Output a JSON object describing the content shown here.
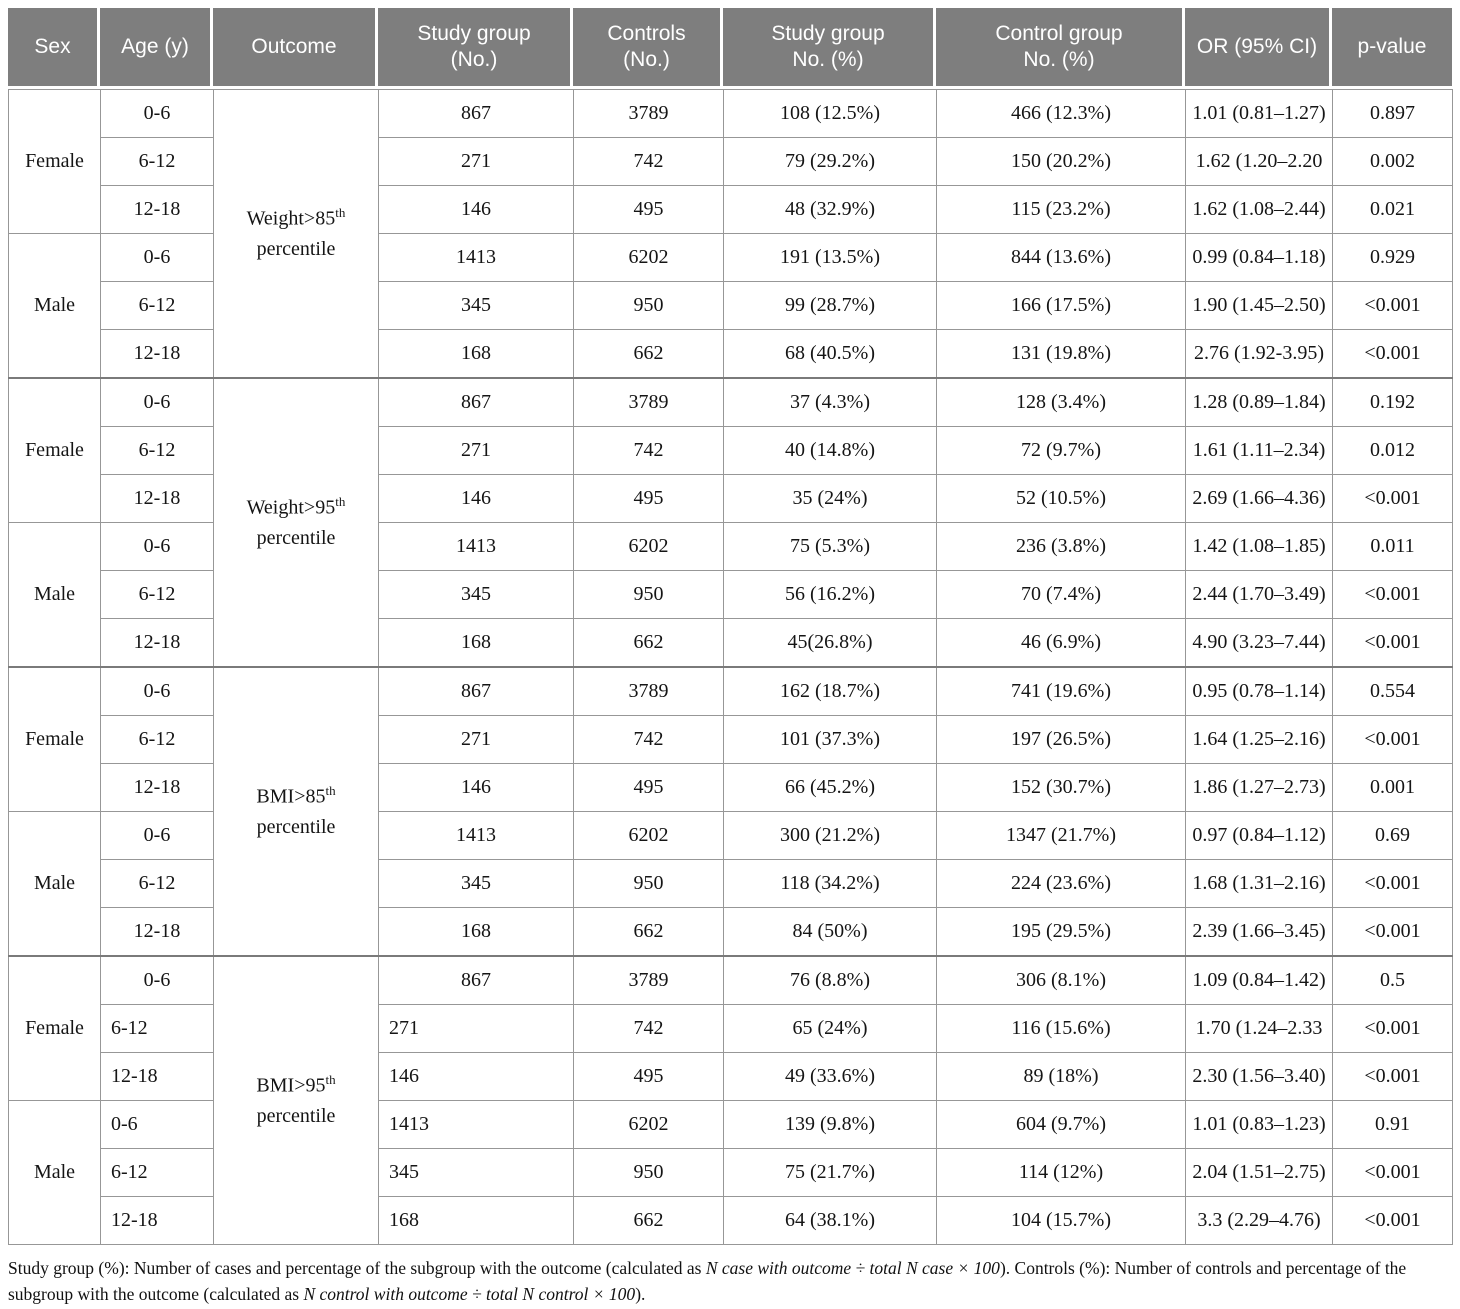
{
  "colors": {
    "header_bg": "#7e7e7e",
    "header_text": "#ffffff",
    "body_text": "#151515",
    "border": "#8f8f8f"
  },
  "table": {
    "columns": [
      "Sex",
      "Age (y)",
      "Outcome",
      "Study group\n(No.)",
      "Controls\n(No.)",
      "Study group\nNo. (%)",
      "Control group\nNo. (%)",
      "OR (95% CI)",
      "p-value"
    ],
    "blocks": [
      {
        "outcome": {
          "line1": "Weight>85",
          "sup": "th",
          "line2": "percentile"
        },
        "groups": [
          {
            "sex": "Female",
            "rows": [
              {
                "age": "0-6",
                "study_n": "867",
                "control_n": "3789",
                "study_pct": "108 (12.5%)",
                "control_pct": "466 (12.3%)",
                "or": "1.01 (0.81–1.27)",
                "p": "0.897"
              },
              {
                "age": "6-12",
                "study_n": "271",
                "control_n": "742",
                "study_pct": "79 (29.2%)",
                "control_pct": "150 (20.2%)",
                "or": "1.62 (1.20–2.20",
                "p": "0.002"
              },
              {
                "age": "12-18",
                "study_n": "146",
                "control_n": "495",
                "study_pct": "48 (32.9%)",
                "control_pct": "115 (23.2%)",
                "or": "1.62 (1.08–2.44)",
                "p": "0.021"
              }
            ]
          },
          {
            "sex": "Male",
            "rows": [
              {
                "age": "0-6",
                "study_n": "1413",
                "control_n": "6202",
                "study_pct": "191 (13.5%)",
                "control_pct": "844 (13.6%)",
                "or": "0.99 (0.84–1.18)",
                "p": "0.929"
              },
              {
                "age": "6-12",
                "study_n": "345",
                "control_n": "950",
                "study_pct": "99 (28.7%)",
                "control_pct": "166 (17.5%)",
                "or": "1.90 (1.45–2.50)",
                "p": "<0.001"
              },
              {
                "age": "12-18",
                "study_n": "168",
                "control_n": "662",
                "study_pct": "68 (40.5%)",
                "control_pct": "131 (19.8%)",
                "or": "2.76 (1.92-3.95)",
                "p": "<0.001"
              }
            ]
          }
        ]
      },
      {
        "outcome": {
          "line1": "Weight>95",
          "sup": "th",
          "line2": "percentile"
        },
        "groups": [
          {
            "sex": "Female",
            "rows": [
              {
                "age": "0-6",
                "study_n": "867",
                "control_n": "3789",
                "study_pct": "37 (4.3%)",
                "control_pct": "128 (3.4%)",
                "or": "1.28 (0.89–1.84)",
                "p": "0.192"
              },
              {
                "age": "6-12",
                "study_n": "271",
                "control_n": "742",
                "study_pct": "40 (14.8%)",
                "control_pct": "72 (9.7%)",
                "or": "1.61 (1.11–2.34)",
                "p": "0.012"
              },
              {
                "age": "12-18",
                "study_n": "146",
                "control_n": "495",
                "study_pct": "35 (24%)",
                "control_pct": "52 (10.5%)",
                "or": "2.69 (1.66–4.36)",
                "p": "<0.001"
              }
            ]
          },
          {
            "sex": "Male",
            "rows": [
              {
                "age": "0-6",
                "study_n": "1413",
                "control_n": "6202",
                "study_pct": "75 (5.3%)",
                "control_pct": "236 (3.8%)",
                "or": "1.42 (1.08–1.85)",
                "p": "0.011"
              },
              {
                "age": "6-12",
                "study_n": "345",
                "control_n": "950",
                "study_pct": "56 (16.2%)",
                "control_pct": "70 (7.4%)",
                "or": "2.44 (1.70–3.49)",
                "p": "<0.001"
              },
              {
                "age": "12-18",
                "study_n": "168",
                "control_n": "662",
                "study_pct": "45(26.8%)",
                "control_pct": "46 (6.9%)",
                "or": "4.90 (3.23–7.44)",
                "p": "<0.001"
              }
            ]
          }
        ]
      },
      {
        "outcome": {
          "line1": "BMI>85",
          "sup": "th",
          "line2": "percentile"
        },
        "groups": [
          {
            "sex": "Female",
            "rows": [
              {
                "age": "0-6",
                "study_n": "867",
                "control_n": "3789",
                "study_pct": "162 (18.7%)",
                "control_pct": "741 (19.6%)",
                "or": "0.95 (0.78–1.14)",
                "p": "0.554"
              },
              {
                "age": "6-12",
                "study_n": "271",
                "control_n": "742",
                "study_pct": "101 (37.3%)",
                "control_pct": "197 (26.5%)",
                "or": "1.64 (1.25–2.16)",
                "p": "<0.001"
              },
              {
                "age": "12-18",
                "study_n": "146",
                "control_n": "495",
                "study_pct": "66 (45.2%)",
                "control_pct": "152 (30.7%)",
                "or": "1.86 (1.27–2.73)",
                "p": "0.001"
              }
            ]
          },
          {
            "sex": "Male",
            "rows": [
              {
                "age": "0-6",
                "study_n": "1413",
                "control_n": "6202",
                "study_pct": "300 (21.2%)",
                "control_pct": "1347 (21.7%)",
                "or": "0.97 (0.84–1.12)",
                "p": "0.69"
              },
              {
                "age": "6-12",
                "study_n": "345",
                "control_n": "950",
                "study_pct": "118 (34.2%)",
                "control_pct": "224 (23.6%)",
                "or": "1.68 (1.31–2.16)",
                "p": "<0.001"
              },
              {
                "age": "12-18",
                "study_n": "168",
                "control_n": "662",
                "study_pct": "84 (50%)",
                "control_pct": "195 (29.5%)",
                "or": "2.39 (1.66–3.45)",
                "p": "<0.001"
              }
            ]
          }
        ]
      },
      {
        "outcome": {
          "line1": "BMI>95",
          "sup": "th",
          "line2": "percentile"
        },
        "groups": [
          {
            "sex": "Female",
            "rows": [
              {
                "age": "0-6",
                "study_n": "867",
                "control_n": "3789",
                "study_pct": "76 (8.8%)",
                "control_pct": "306 (8.1%)",
                "or": "1.09 (0.84–1.42)",
                "p": "0.5"
              },
              {
                "age": "6-12",
                "study_n": "271",
                "control_n": "742",
                "study_pct": "65 (24%)",
                "control_pct": "116 (15.6%)",
                "or": "1.70 (1.24–2.33",
                "p": "<0.001",
                "align": "left"
              },
              {
                "age": "12-18",
                "study_n": "146",
                "control_n": "495",
                "study_pct": "49 (33.6%)",
                "control_pct": "89 (18%)",
                "or": "2.30 (1.56–3.40)",
                "p": "<0.001",
                "align": "left"
              }
            ]
          },
          {
            "sex": "Male",
            "rows": [
              {
                "age": "0-6",
                "study_n": "1413",
                "control_n": "6202",
                "study_pct": "139 (9.8%)",
                "control_pct": "604 (9.7%)",
                "or": "1.01 (0.83–1.23)",
                "p": "0.91",
                "align": "left"
              },
              {
                "age": "6-12",
                "study_n": "345",
                "control_n": "950",
                "study_pct": "75 (21.7%)",
                "control_pct": "114 (12%)",
                "or": "2.04 (1.51–2.75)",
                "p": "<0.001",
                "align": "left"
              },
              {
                "age": "12-18",
                "study_n": "168",
                "control_n": "662",
                "study_pct": "64 (38.1%)",
                "control_pct": "104 (15.7%)",
                "or": "3.3 (2.29–4.76)",
                "p": "<0.001",
                "align": "left"
              }
            ]
          }
        ]
      }
    ]
  },
  "footnote": {
    "segments": [
      {
        "text": "Study group (%): Number of cases and percentage of the subgroup with the outcome (calculated as ",
        "italic": false
      },
      {
        "text": "N case with outcome ÷ total N case × 100",
        "italic": true
      },
      {
        "text": "). Controls (%): Number of controls and percentage of the subgroup with the outcome (calculated as ",
        "italic": false
      },
      {
        "text": "N control with outcome ÷ total N control × 100",
        "italic": true
      },
      {
        "text": ").",
        "italic": false
      }
    ]
  }
}
